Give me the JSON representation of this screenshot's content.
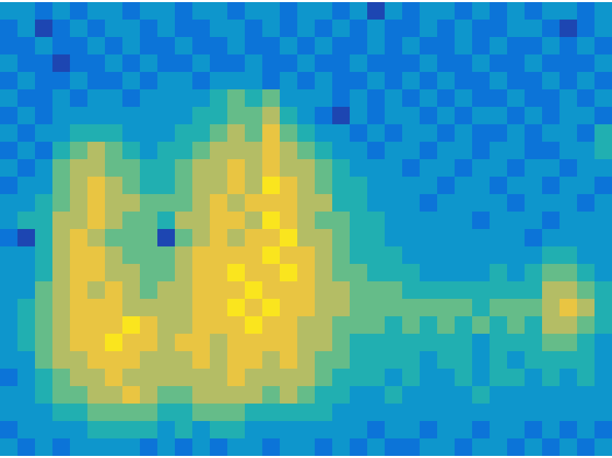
{
  "chart_data": {
    "type": "heatmap",
    "tick_labels": false,
    "zlim": [
      1.5,
      9.5
    ],
    "values": [
      [
        4,
        4,
        3,
        4,
        3,
        4,
        4,
        3,
        4,
        4,
        3,
        4,
        4,
        3,
        4,
        4,
        3,
        4,
        4,
        3,
        4,
        2,
        4,
        3,
        4,
        4,
        3,
        4,
        3,
        4,
        3,
        4,
        4,
        3,
        4
      ],
      [
        3,
        4,
        2,
        3,
        4,
        3,
        4,
        4,
        3,
        4,
        3,
        3,
        4,
        4,
        3,
        4,
        3,
        4,
        3,
        4,
        3,
        4,
        3,
        3,
        4,
        3,
        4,
        3,
        3,
        4,
        4,
        3,
        2,
        3,
        4
      ],
      [
        3,
        3,
        4,
        3,
        3,
        4,
        3,
        4,
        3,
        3,
        4,
        3,
        3,
        4,
        3,
        3,
        4,
        3,
        4,
        3,
        3,
        4,
        3,
        4,
        3,
        3,
        4,
        3,
        4,
        3,
        3,
        4,
        3,
        4,
        3
      ],
      [
        4,
        3,
        3,
        2,
        3,
        3,
        4,
        3,
        4,
        3,
        3,
        4,
        3,
        3,
        4,
        3,
        3,
        4,
        3,
        3,
        4,
        3,
        3,
        3,
        4,
        3,
        3,
        4,
        3,
        3,
        4,
        3,
        3,
        3,
        4
      ],
      [
        3,
        4,
        3,
        3,
        4,
        3,
        3,
        4,
        3,
        4,
        4,
        3,
        4,
        4,
        4,
        3,
        4,
        3,
        4,
        3,
        3,
        4,
        3,
        4,
        3,
        4,
        3,
        3,
        4,
        3,
        3,
        4,
        3,
        4,
        3
      ],
      [
        4,
        3,
        3,
        4,
        3,
        4,
        4,
        3,
        4,
        4,
        4,
        4,
        5,
        6,
        5,
        6,
        4,
        4,
        4,
        3,
        4,
        3,
        4,
        3,
        4,
        3,
        4,
        3,
        3,
        4,
        3,
        3,
        4,
        3,
        4
      ],
      [
        3,
        4,
        3,
        4,
        4,
        4,
        4,
        4,
        4,
        4,
        4,
        5,
        5,
        6,
        6,
        7,
        5,
        4,
        3,
        2,
        4,
        3,
        4,
        4,
        3,
        4,
        3,
        4,
        4,
        3,
        4,
        3,
        4,
        4,
        3
      ],
      [
        4,
        3,
        4,
        4,
        5,
        5,
        5,
        4,
        4,
        4,
        5,
        5,
        6,
        7,
        6,
        8,
        6,
        5,
        4,
        4,
        3,
        4,
        3,
        4,
        4,
        3,
        4,
        3,
        3,
        4,
        3,
        4,
        4,
        3,
        5
      ],
      [
        3,
        4,
        3,
        5,
        6,
        7,
        6,
        5,
        4,
        5,
        5,
        6,
        7,
        7,
        7,
        8,
        7,
        6,
        5,
        4,
        4,
        3,
        4,
        4,
        3,
        4,
        4,
        3,
        4,
        4,
        3,
        3,
        4,
        4,
        5
      ],
      [
        4,
        3,
        4,
        6,
        7,
        7,
        6,
        6,
        5,
        5,
        6,
        7,
        7,
        8,
        7,
        8,
        7,
        7,
        6,
        5,
        4,
        4,
        4,
        3,
        4,
        4,
        3,
        4,
        4,
        3,
        4,
        4,
        3,
        4,
        4
      ],
      [
        3,
        4,
        4,
        6,
        7,
        8,
        7,
        6,
        5,
        5,
        6,
        7,
        7,
        8,
        7,
        9,
        8,
        7,
        6,
        5,
        5,
        4,
        4,
        4,
        4,
        3,
        4,
        4,
        3,
        4,
        4,
        3,
        4,
        4,
        3
      ],
      [
        4,
        4,
        5,
        6,
        7,
        8,
        7,
        7,
        6,
        6,
        6,
        7,
        8,
        7,
        8,
        8,
        8,
        7,
        7,
        5,
        5,
        4,
        4,
        4,
        3,
        4,
        4,
        4,
        4,
        3,
        4,
        4,
        4,
        3,
        4
      ],
      [
        4,
        5,
        5,
        7,
        7,
        8,
        7,
        6,
        6,
        5,
        7,
        7,
        8,
        8,
        7,
        9,
        8,
        7,
        6,
        6,
        5,
        5,
        4,
        4,
        4,
        4,
        4,
        3,
        4,
        4,
        4,
        3,
        4,
        4,
        4
      ],
      [
        3,
        2,
        5,
        7,
        8,
        7,
        6,
        6,
        6,
        2,
        6,
        7,
        8,
        7,
        8,
        8,
        9,
        7,
        7,
        6,
        5,
        5,
        4,
        4,
        4,
        4,
        4,
        4,
        4,
        4,
        3,
        4,
        4,
        4,
        4
      ],
      [
        4,
        4,
        5,
        7,
        8,
        8,
        7,
        6,
        6,
        6,
        7,
        8,
        8,
        8,
        8,
        9,
        8,
        8,
        7,
        6,
        5,
        5,
        5,
        4,
        4,
        4,
        4,
        4,
        4,
        4,
        4,
        5,
        5,
        4,
        4
      ],
      [
        4,
        4,
        5,
        7,
        8,
        8,
        7,
        7,
        6,
        6,
        7,
        8,
        8,
        9,
        8,
        8,
        9,
        8,
        7,
        6,
        6,
        5,
        5,
        5,
        4,
        4,
        4,
        4,
        5,
        4,
        5,
        6,
        6,
        5,
        4
      ],
      [
        4,
        4,
        6,
        7,
        8,
        7,
        8,
        7,
        6,
        7,
        7,
        8,
        8,
        8,
        9,
        8,
        8,
        8,
        7,
        7,
        6,
        6,
        6,
        5,
        5,
        5,
        5,
        5,
        5,
        5,
        5,
        7,
        7,
        6,
        5
      ],
      [
        4,
        5,
        6,
        7,
        8,
        8,
        8,
        7,
        7,
        7,
        7,
        8,
        8,
        9,
        8,
        9,
        8,
        8,
        7,
        7,
        6,
        6,
        6,
        6,
        6,
        6,
        6,
        5,
        6,
        6,
        6,
        7,
        8,
        7,
        5
      ],
      [
        4,
        5,
        6,
        7,
        8,
        8,
        8,
        9,
        8,
        7,
        7,
        8,
        8,
        8,
        9,
        8,
        8,
        7,
        7,
        6,
        6,
        6,
        5,
        6,
        5,
        6,
        5,
        6,
        5,
        6,
        5,
        7,
        7,
        6,
        5
      ],
      [
        4,
        5,
        6,
        7,
        8,
        8,
        9,
        8,
        8,
        7,
        8,
        8,
        7,
        8,
        8,
        8,
        8,
        7,
        7,
        6,
        5,
        5,
        5,
        5,
        5,
        5,
        5,
        4,
        5,
        5,
        5,
        6,
        6,
        5,
        4
      ],
      [
        4,
        4,
        6,
        7,
        7,
        8,
        8,
        8,
        7,
        7,
        7,
        8,
        7,
        8,
        8,
        7,
        8,
        7,
        6,
        6,
        5,
        5,
        5,
        5,
        4,
        5,
        5,
        4,
        5,
        4,
        5,
        5,
        5,
        5,
        4
      ],
      [
        3,
        4,
        5,
        6,
        7,
        7,
        8,
        7,
        7,
        7,
        7,
        7,
        7,
        8,
        7,
        7,
        7,
        7,
        6,
        5,
        5,
        5,
        4,
        5,
        4,
        4,
        5,
        4,
        5,
        5,
        4,
        5,
        4,
        5,
        4
      ],
      [
        4,
        4,
        5,
        6,
        6,
        7,
        7,
        8,
        7,
        6,
        6,
        7,
        7,
        7,
        7,
        6,
        7,
        6,
        5,
        5,
        4,
        4,
        5,
        4,
        4,
        4,
        4,
        5,
        4,
        4,
        4,
        4,
        4,
        4,
        4
      ],
      [
        4,
        4,
        4,
        5,
        5,
        6,
        6,
        6,
        6,
        5,
        5,
        6,
        6,
        6,
        5,
        5,
        5,
        5,
        5,
        4,
        4,
        4,
        4,
        4,
        4,
        4,
        4,
        4,
        4,
        4,
        4,
        4,
        4,
        4,
        4
      ],
      [
        3,
        4,
        4,
        4,
        4,
        5,
        5,
        5,
        5,
        4,
        5,
        4,
        5,
        5,
        4,
        4,
        4,
        4,
        4,
        4,
        4,
        3,
        4,
        4,
        3,
        4,
        4,
        3,
        4,
        4,
        3,
        4,
        3,
        4,
        3
      ],
      [
        4,
        3,
        4,
        3,
        4,
        4,
        4,
        4,
        3,
        4,
        3,
        4,
        3,
        4,
        4,
        3,
        4,
        4,
        3,
        4,
        3,
        4,
        3,
        3,
        4,
        4,
        3,
        4,
        4,
        3,
        4,
        3,
        4,
        3,
        4
      ]
    ]
  }
}
